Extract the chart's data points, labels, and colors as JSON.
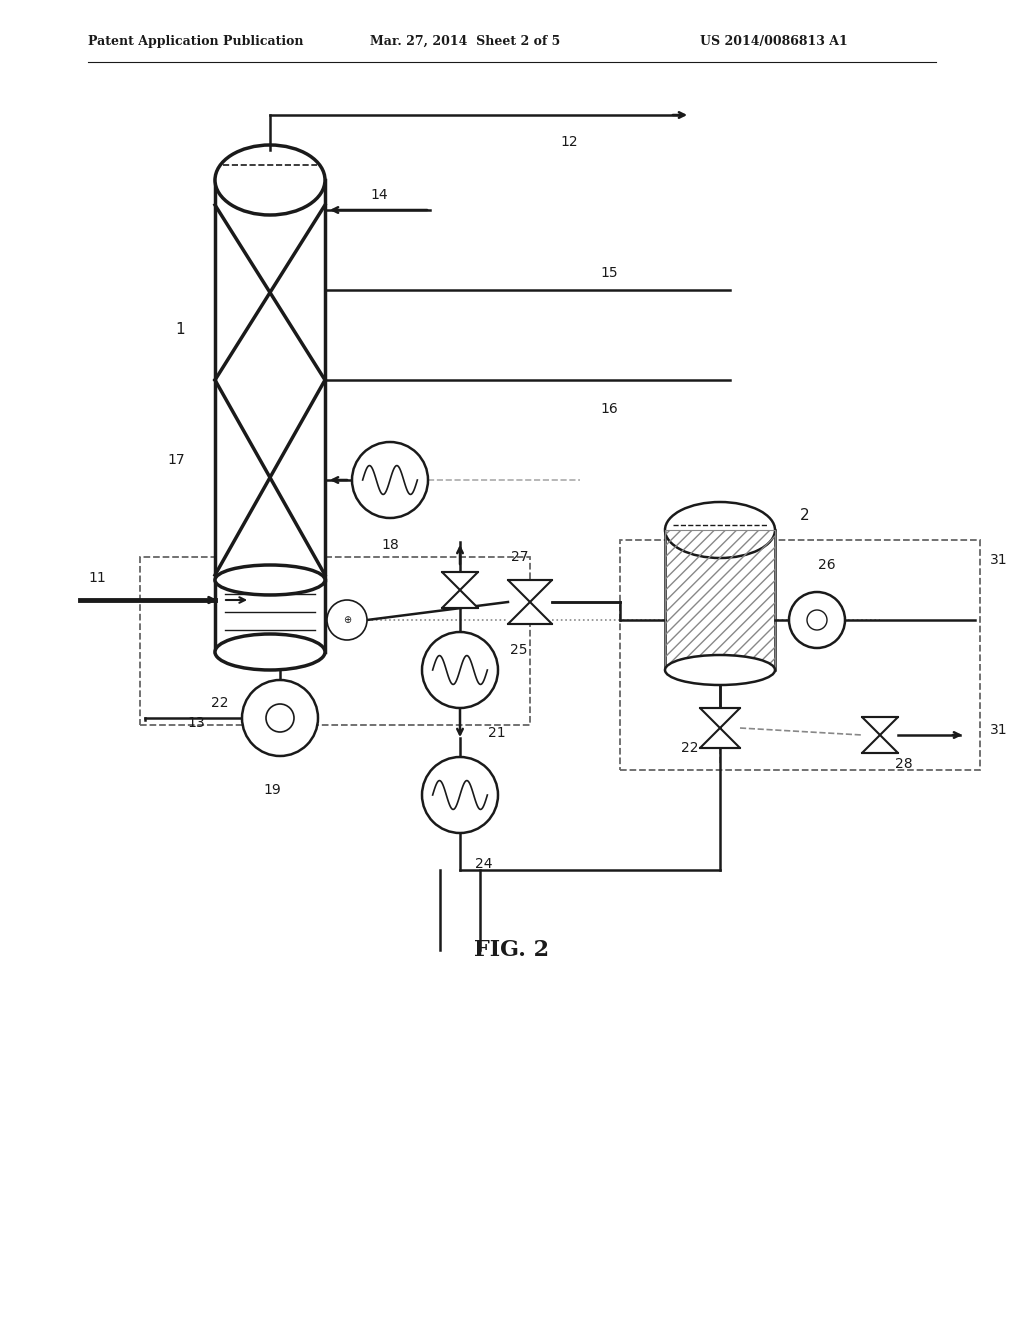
{
  "title": "FIG. 2",
  "header_left": "Patent Application Publication",
  "header_mid": "Mar. 27, 2014  Sheet 2 of 5",
  "header_right": "US 2014/0086813 A1",
  "bg_color": "#ffffff",
  "line_color": "#1a1a1a",
  "gray_color": "#888888"
}
